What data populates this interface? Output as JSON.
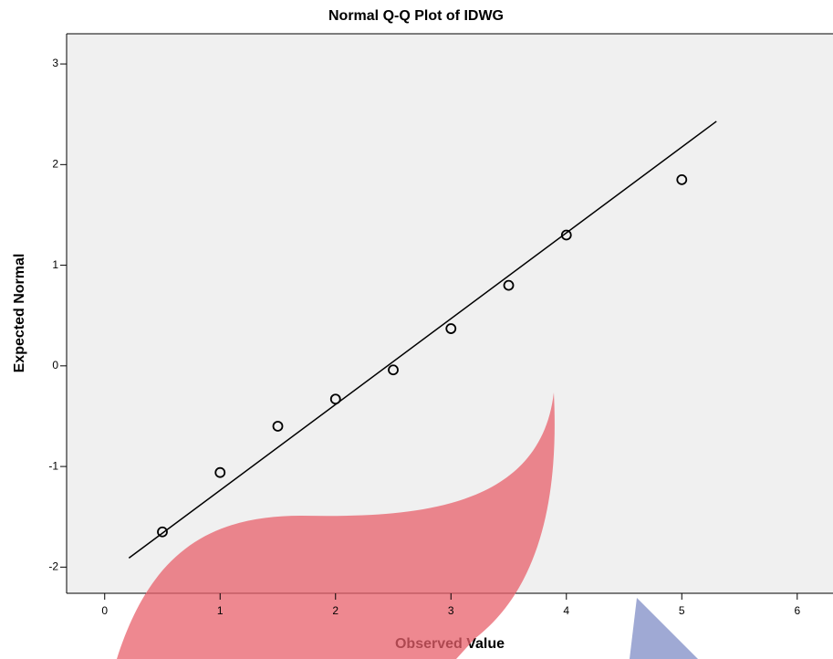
{
  "chart_data": {
    "type": "scatter",
    "title": "Normal Q-Q Plot of IDWG",
    "x_label": "Observed Value",
    "y_label": "Expected Normal",
    "x": [
      0.5,
      1,
      1.5,
      2,
      2.5,
      3,
      3.5,
      4,
      5
    ],
    "values": [
      -1.65,
      -1.06,
      -0.6,
      -0.33,
      -0.04,
      0.37,
      0.8,
      1.3,
      1.85
    ],
    "color": "#000000",
    "reference_line": {
      "x": [
        0.21,
        5.3
      ],
      "y": [
        -1.91,
        2.43
      ]
    },
    "xlim": [
      -0.33,
      6.31
    ],
    "xticks": [
      0,
      1,
      2,
      3,
      4,
      5,
      6
    ],
    "ylim": [
      -2.26,
      3.3
    ],
    "yticks": [
      -2,
      -1,
      0,
      1,
      2,
      3
    ]
  }
}
